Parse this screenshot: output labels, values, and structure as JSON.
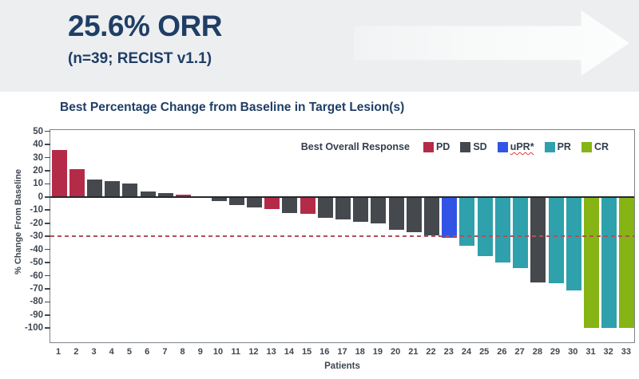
{
  "header": {
    "orr_headline": "25.6% ORR",
    "subtitle": "(n=39; RECIST v1.1)"
  },
  "chart_data": {
    "type": "bar",
    "title": "Best Percentage Change from Baseline in Target Lesion(s)",
    "xlabel": "Patients",
    "ylabel": "% Change From Baseline",
    "legend_title": "Best Overall Response",
    "ylim": [
      -112,
      51
    ],
    "yticks": [
      50,
      40,
      30,
      20,
      10,
      0,
      -10,
      -20,
      -30,
      -40,
      -50,
      -60,
      -70,
      -80,
      -90,
      -100
    ],
    "reference_line": {
      "y": -30,
      "style": "dashed",
      "color": "#b0505b"
    },
    "grid": "off",
    "legend_position": "top-right-inside",
    "categories": [
      1,
      2,
      3,
      4,
      5,
      6,
      7,
      8,
      9,
      10,
      11,
      12,
      13,
      14,
      15,
      16,
      17,
      18,
      19,
      20,
      21,
      22,
      23,
      24,
      25,
      26,
      27,
      28,
      29,
      30,
      31,
      32,
      33
    ],
    "values": [
      36,
      21,
      13,
      12,
      10,
      4,
      3,
      2,
      0,
      -3,
      -6,
      -8,
      -9,
      -12,
      -13,
      -16,
      -17,
      -19,
      -20,
      -25,
      -27,
      -29,
      -31,
      -37,
      -45,
      -50,
      -54,
      -65,
      -66,
      -71,
      -100,
      -100,
      -100
    ],
    "responses": [
      "PD",
      "PD",
      "SD",
      "SD",
      "SD",
      "SD",
      "SD",
      "PD",
      "SD",
      "SD",
      "SD",
      "SD",
      "PD",
      "SD",
      "PD",
      "SD",
      "SD",
      "SD",
      "SD",
      "SD",
      "SD",
      "SD",
      "uPR",
      "PR",
      "PR",
      "PR",
      "PR",
      "SD",
      "PR",
      "PR",
      "CR",
      "PR",
      "CR"
    ],
    "legend": [
      {
        "label": "PD",
        "color": "#b42b48",
        "underline": false
      },
      {
        "label": "SD",
        "color": "#45494e",
        "underline": false
      },
      {
        "label": "uPR*",
        "color": "#3254e6",
        "underline": true
      },
      {
        "label": "PR",
        "color": "#2ea1ac",
        "underline": false
      },
      {
        "label": "CR",
        "color": "#86b414",
        "underline": false
      }
    ],
    "response_colors": {
      "PD": "#b42b48",
      "SD": "#45494e",
      "uPR": "#3254e6",
      "PR": "#2ea1ac",
      "CR": "#86b414"
    }
  },
  "colors": {
    "page_bg": "#eceef0",
    "panel_bg": "#ffffff",
    "headline_navy": "#1f3e66",
    "axis_text": "#3e4751",
    "plot_frame": "#7e8389",
    "zero_line": "#24282d",
    "arrow_fill": "#fbfcfd"
  }
}
